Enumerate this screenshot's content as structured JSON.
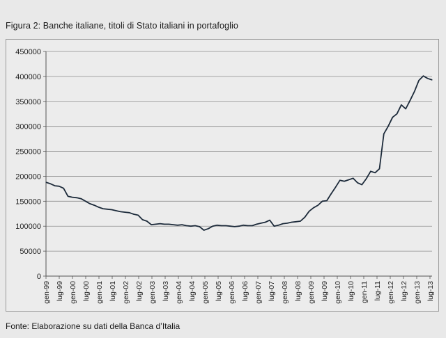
{
  "figure": {
    "title": "Figura 2: Banche italiane, titoli di Stato italiani in portafoglio",
    "source": "Fonte: Elaborazione su dati della Banca d’Italia"
  },
  "chart_data": {
    "type": "line",
    "title": "Figura 2: Banche italiane, titoli di Stato italiani in portafoglio",
    "xlabel": "",
    "ylabel": "",
    "ylim": [
      0,
      450000
    ],
    "yticks": [
      0,
      50000,
      100000,
      150000,
      200000,
      250000,
      300000,
      350000,
      400000,
      450000
    ],
    "xticks": [
      "gen-99",
      "lug-99",
      "gen-00",
      "lug-00",
      "gen-01",
      "lug-01",
      "gen-02",
      "lug-02",
      "gen-03",
      "lug-03",
      "gen-04",
      "lug-04",
      "gen-05",
      "lug-05",
      "gen-06",
      "lug-06",
      "gen-07",
      "lug-07",
      "gen-08",
      "lug-08",
      "gen-09",
      "lug-09",
      "gen-10",
      "lug-10",
      "gen-11",
      "lug-11",
      "gen-12",
      "lug-12",
      "gen-13",
      "lug-13"
    ],
    "grid": "horizontal",
    "legend": "none",
    "line_color": "#1c2a3a",
    "series": [
      {
        "x": [
          "gen-99",
          "mar-99",
          "mag-99",
          "lug-99",
          "set-99",
          "nov-99",
          "gen-00",
          "mar-00",
          "mag-00",
          "lug-00",
          "set-00",
          "nov-00",
          "gen-01",
          "mar-01",
          "mag-01",
          "lug-01",
          "set-01",
          "nov-01",
          "gen-02",
          "mar-02",
          "mag-02",
          "lug-02",
          "set-02",
          "nov-02",
          "gen-03",
          "mar-03",
          "mag-03",
          "lug-03",
          "set-03",
          "nov-03",
          "gen-04",
          "mar-04",
          "mag-04",
          "lug-04",
          "set-04",
          "nov-04",
          "gen-05",
          "mar-05",
          "mag-05",
          "lug-05",
          "set-05",
          "nov-05",
          "gen-06",
          "mar-06",
          "mag-06",
          "lug-06",
          "set-06",
          "nov-06",
          "gen-07",
          "mar-07",
          "mag-07",
          "lug-07",
          "set-07",
          "nov-07",
          "gen-08",
          "mar-08",
          "mag-08",
          "lug-08",
          "set-08",
          "nov-08",
          "gen-09",
          "mar-09",
          "mag-09",
          "lug-09",
          "set-09",
          "nov-09",
          "gen-10",
          "mar-10",
          "mag-10",
          "lug-10",
          "set-10",
          "nov-10",
          "gen-11",
          "mar-11",
          "mag-11",
          "lug-11",
          "set-11",
          "nov-11",
          "gen-12",
          "mar-12",
          "mag-12",
          "lug-12",
          "set-12",
          "nov-12",
          "gen-13",
          "mar-13",
          "mag-13",
          "lug-13",
          "set-13"
        ],
        "values": [
          188000,
          185000,
          181000,
          180000,
          176000,
          160000,
          158000,
          157000,
          155000,
          150000,
          145000,
          142000,
          138000,
          135000,
          134000,
          133000,
          131000,
          129000,
          128000,
          127000,
          124000,
          122000,
          113000,
          110000,
          103000,
          104000,
          105000,
          104000,
          104000,
          103000,
          102000,
          103000,
          101000,
          100000,
          101000,
          99000,
          92000,
          95000,
          100000,
          102000,
          101000,
          101000,
          100000,
          99000,
          100000,
          102000,
          101000,
          101000,
          104000,
          106000,
          108000,
          112000,
          100000,
          102000,
          105000,
          106000,
          108000,
          109000,
          110000,
          118000,
          130000,
          137000,
          142000,
          150000,
          151000,
          165000,
          178000,
          192000,
          190000,
          193000,
          196000,
          187000,
          183000,
          195000,
          210000,
          207000,
          215000,
          285000,
          300000,
          318000,
          325000,
          343000,
          335000,
          352000,
          370000,
          392000,
          401000,
          396000,
          393000
        ]
      }
    ]
  }
}
